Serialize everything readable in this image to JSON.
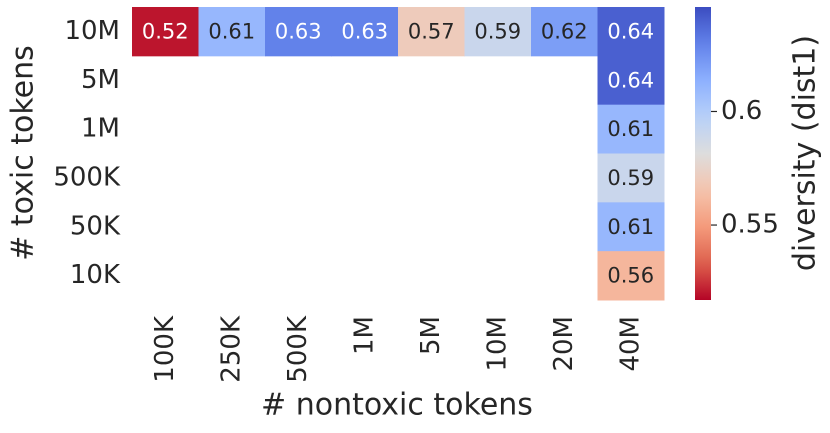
{
  "chart_data": {
    "type": "heatmap",
    "x_label": "# nontoxic tokens",
    "y_label": "# toxic tokens",
    "colorbar_label": "diversity (dist1)",
    "colormap": "coolwarm_r",
    "x_categories": [
      "100K",
      "250K",
      "500K",
      "1M",
      "5M",
      "10M",
      "20M",
      "40M"
    ],
    "y_categories": [
      "10M",
      "5M",
      "1M",
      "500K",
      "50K",
      "10K"
    ],
    "values": [
      [
        0.52,
        0.61,
        0.63,
        0.63,
        0.57,
        0.59,
        0.62,
        0.64
      ],
      [
        null,
        null,
        null,
        null,
        null,
        null,
        null,
        0.64
      ],
      [
        null,
        null,
        null,
        null,
        null,
        null,
        null,
        0.61
      ],
      [
        null,
        null,
        null,
        null,
        null,
        null,
        null,
        0.59
      ],
      [
        null,
        null,
        null,
        null,
        null,
        null,
        null,
        0.61
      ],
      [
        null,
        null,
        null,
        null,
        null,
        null,
        null,
        0.56
      ]
    ],
    "clim": [
      0.517,
      0.646
    ],
    "cticks": [
      0.55,
      0.6
    ]
  }
}
